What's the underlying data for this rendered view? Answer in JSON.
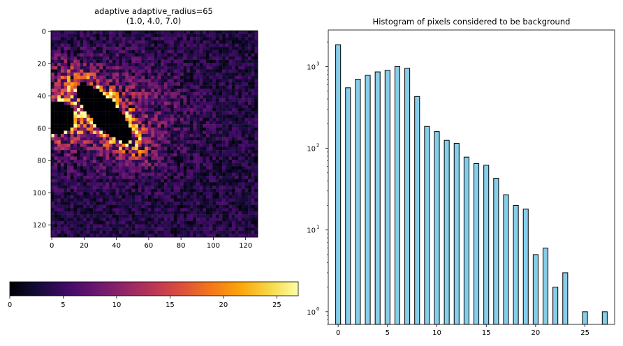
{
  "image_panel": {
    "title_line1": "adaptive adaptive_radius=65",
    "title_line2": "(1.0, 4.0, 7.0)",
    "xticks": [
      "0",
      "20",
      "40",
      "60",
      "80",
      "100",
      "120"
    ],
    "yticks": [
      "0",
      "20",
      "40",
      "60",
      "80",
      "100",
      "120"
    ],
    "colormap": "inferno"
  },
  "colorbar": {
    "ticks": [
      "0",
      "5",
      "10",
      "15",
      "20",
      "25"
    ],
    "range": [
      0,
      27
    ]
  },
  "chart_data": {
    "type": "bar",
    "title": "Histogram of pixels considered to be background",
    "xlabel": "",
    "ylabel": "",
    "yscale": "log",
    "xlim": [
      -1,
      28
    ],
    "ylim": [
      0.7,
      2800
    ],
    "x": [
      0,
      1,
      2,
      3,
      4,
      5,
      6,
      7,
      8,
      9,
      10,
      11,
      12,
      13,
      14,
      15,
      16,
      17,
      18,
      19,
      20,
      21,
      22,
      23,
      24,
      25,
      26,
      27
    ],
    "values": [
      1850,
      550,
      700,
      780,
      860,
      900,
      1000,
      950,
      430,
      185,
      160,
      125,
      115,
      78,
      65,
      62,
      43,
      27,
      20,
      18,
      5,
      6,
      2,
      3,
      0,
      1,
      0,
      1
    ],
    "bar_color": "#87ceeb",
    "edge_color": "#000000",
    "xticks": [
      0,
      5,
      10,
      15,
      20,
      25
    ],
    "xtick_labels": [
      "0",
      "5",
      "10",
      "15",
      "20",
      "25"
    ],
    "yticks": [
      1,
      10,
      100,
      1000
    ],
    "ytick_labels": [
      "10",
      "10",
      "10",
      "10"
    ],
    "ytick_exponents": [
      "0",
      "1",
      "2",
      "3"
    ]
  }
}
